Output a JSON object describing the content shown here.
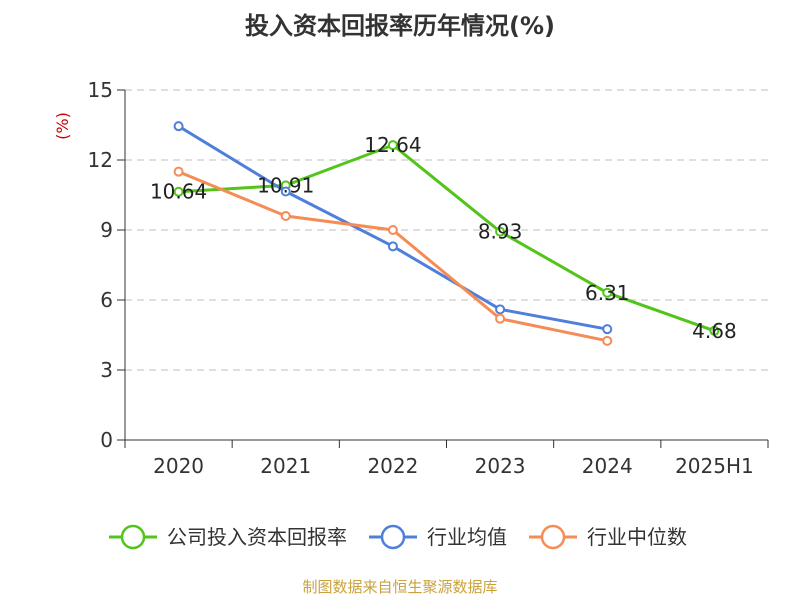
{
  "chart_data": {
    "type": "line",
    "title": "投入资本回报率历年情况(%)",
    "ylabel": "(%)",
    "xlabel": "",
    "categories": [
      "2020",
      "2021",
      "2022",
      "2023",
      "2024",
      "2025H1"
    ],
    "ylim": [
      0,
      15
    ],
    "yticks": [
      0,
      3,
      6,
      9,
      12,
      15
    ],
    "grid": true,
    "legend_position": "bottom",
    "series": [
      {
        "name": "公司投入资本回报率",
        "color": "#52c41a",
        "values": [
          10.64,
          10.91,
          12.64,
          8.93,
          6.31,
          4.68
        ],
        "labels": [
          "10.64",
          "10.91",
          "12.64",
          "8.93",
          "6.31",
          "4.68"
        ]
      },
      {
        "name": "行业均值",
        "color": "#4e7fdb",
        "values": [
          13.45,
          10.65,
          8.3,
          5.6,
          4.75,
          null
        ]
      },
      {
        "name": "行业中位数",
        "color": "#f58c55",
        "values": [
          11.5,
          9.6,
          9.0,
          5.2,
          4.25,
          null
        ]
      }
    ]
  },
  "colors": {
    "ylabel": "#cc0000",
    "grid": "#cccccc",
    "axis": "#333333",
    "source": "#c8a23c"
  },
  "source": "制图数据来自恒生聚源数据库"
}
